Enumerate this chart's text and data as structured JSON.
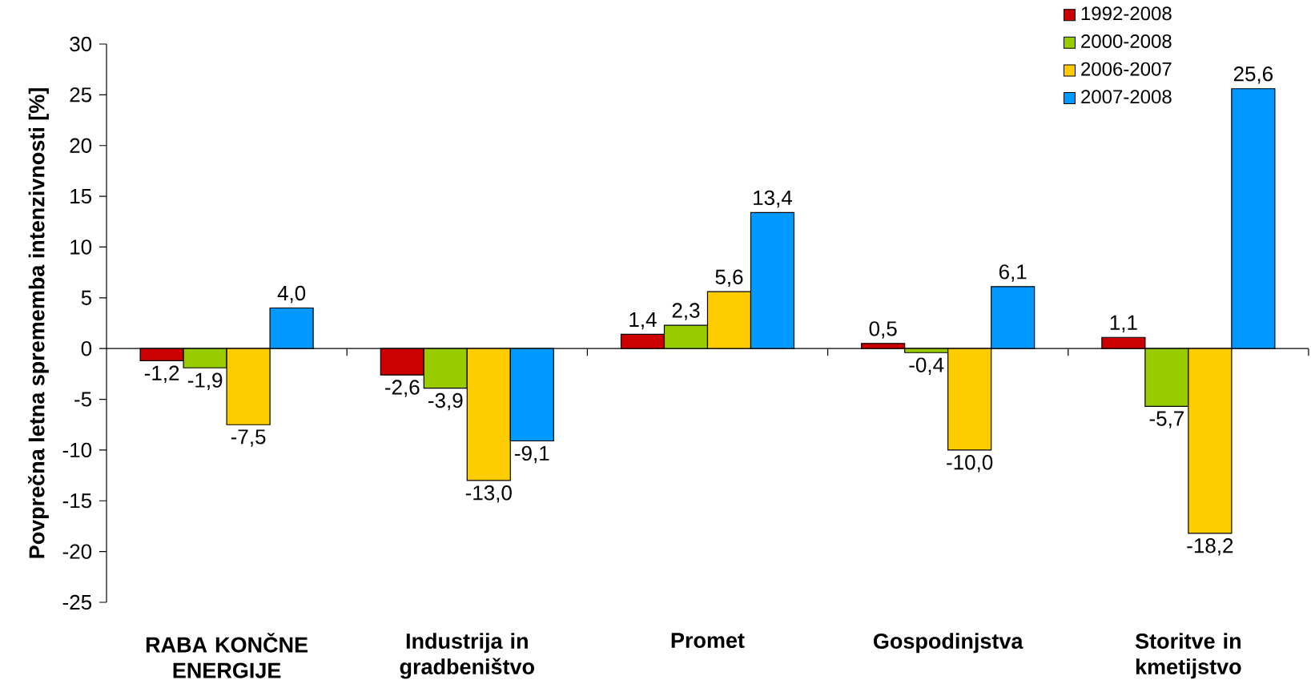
{
  "chart_data": {
    "type": "bar",
    "ylabel": "Povprečna letna sprememba intenzivnosti [%]",
    "categories": [
      "RABA KONČNE ENERGIJE",
      "Industrija in gradbeništvo",
      "Promet",
      "Gospodinjstva",
      "Storitve in kmetijstvo"
    ],
    "series": [
      {
        "name": "1992-2008",
        "color": "#cc0000",
        "values": [
          -1.2,
          -2.6,
          1.4,
          0.5,
          1.1
        ],
        "value_labels": [
          "-1,2",
          "-2,6",
          "1,4",
          "0,5",
          "1,1"
        ]
      },
      {
        "name": "2000-2008",
        "color": "#99cc00",
        "values": [
          -1.9,
          -3.9,
          2.3,
          -0.4,
          -5.7
        ],
        "value_labels": [
          "-1,9",
          "-3,9",
          "2,3",
          "-0,4",
          "-5,7"
        ]
      },
      {
        "name": "2006-2007",
        "color": "#ffcc00",
        "values": [
          -7.5,
          -13.0,
          5.6,
          -10.0,
          -18.2
        ],
        "value_labels": [
          "-7,5",
          "-13,0",
          "5,6",
          "-10,0",
          "-18,2"
        ]
      },
      {
        "name": "2007-2008",
        "color": "#0099ff",
        "values": [
          4.0,
          -9.1,
          13.4,
          6.1,
          25.6
        ],
        "value_labels": [
          "4,0",
          "-9,1",
          "13,4",
          "6,1",
          "25,6"
        ]
      }
    ],
    "ylim": [
      -25,
      30
    ],
    "yticks": [
      -25,
      -20,
      -15,
      -10,
      -5,
      0,
      5,
      10,
      15,
      20,
      25,
      30
    ],
    "legend": "top right"
  }
}
